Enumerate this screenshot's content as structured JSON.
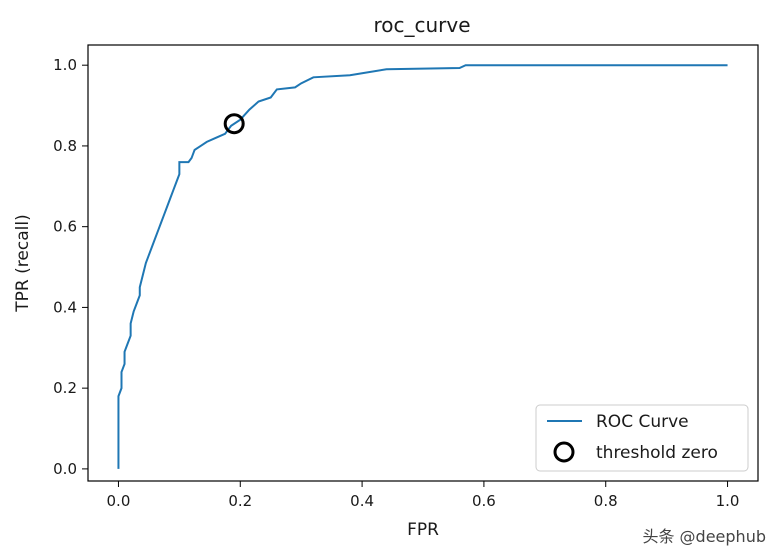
{
  "chart_data": {
    "type": "line",
    "title": "roc_curve",
    "xlabel": "FPR",
    "ylabel": "TPR (recall)",
    "xlim": [
      -0.05,
      1.05
    ],
    "ylim": [
      -0.03,
      1.05
    ],
    "xticks": [
      {
        "value": 0.0,
        "label": "0.0"
      },
      {
        "value": 0.2,
        "label": "0.2"
      },
      {
        "value": 0.4,
        "label": "0.4"
      },
      {
        "value": 0.6,
        "label": "0.6"
      },
      {
        "value": 0.8,
        "label": "0.8"
      },
      {
        "value": 1.0,
        "label": "1.0"
      }
    ],
    "yticks": [
      {
        "value": 0.0,
        "label": "0.0"
      },
      {
        "value": 0.2,
        "label": "0.2"
      },
      {
        "value": 0.4,
        "label": "0.4"
      },
      {
        "value": 0.6,
        "label": "0.6"
      },
      {
        "value": 0.8,
        "label": "0.8"
      },
      {
        "value": 1.0,
        "label": "1.0"
      }
    ],
    "grid": false,
    "legend_position": "lower-right",
    "series": [
      {
        "name": "ROC Curve",
        "color": "#1f77b4",
        "points": [
          [
            0.0,
            0.0
          ],
          [
            0.0,
            0.18
          ],
          [
            0.005,
            0.2
          ],
          [
            0.005,
            0.24
          ],
          [
            0.01,
            0.26
          ],
          [
            0.01,
            0.29
          ],
          [
            0.015,
            0.31
          ],
          [
            0.02,
            0.33
          ],
          [
            0.02,
            0.36
          ],
          [
            0.025,
            0.39
          ],
          [
            0.03,
            0.41
          ],
          [
            0.035,
            0.43
          ],
          [
            0.035,
            0.45
          ],
          [
            0.04,
            0.48
          ],
          [
            0.045,
            0.51
          ],
          [
            0.05,
            0.53
          ],
          [
            0.055,
            0.55
          ],
          [
            0.06,
            0.57
          ],
          [
            0.065,
            0.59
          ],
          [
            0.07,
            0.61
          ],
          [
            0.075,
            0.63
          ],
          [
            0.08,
            0.65
          ],
          [
            0.085,
            0.67
          ],
          [
            0.09,
            0.69
          ],
          [
            0.095,
            0.71
          ],
          [
            0.1,
            0.73
          ],
          [
            0.1,
            0.76
          ],
          [
            0.115,
            0.76
          ],
          [
            0.12,
            0.77
          ],
          [
            0.125,
            0.79
          ],
          [
            0.135,
            0.8
          ],
          [
            0.145,
            0.81
          ],
          [
            0.16,
            0.82
          ],
          [
            0.175,
            0.83
          ],
          [
            0.185,
            0.85
          ],
          [
            0.2,
            0.865
          ],
          [
            0.215,
            0.89
          ],
          [
            0.23,
            0.91
          ],
          [
            0.25,
            0.92
          ],
          [
            0.26,
            0.94
          ],
          [
            0.29,
            0.945
          ],
          [
            0.3,
            0.955
          ],
          [
            0.32,
            0.97
          ],
          [
            0.38,
            0.975
          ],
          [
            0.4,
            0.98
          ],
          [
            0.44,
            0.99
          ],
          [
            0.56,
            0.993
          ],
          [
            0.57,
            1.0
          ],
          [
            1.0,
            1.0
          ]
        ]
      }
    ],
    "markers": [
      {
        "name": "threshold zero",
        "shape": "open-circle",
        "color": "#000000",
        "x": 0.19,
        "y": 0.855
      }
    ]
  },
  "watermark": {
    "text": "头条 @deephub"
  }
}
